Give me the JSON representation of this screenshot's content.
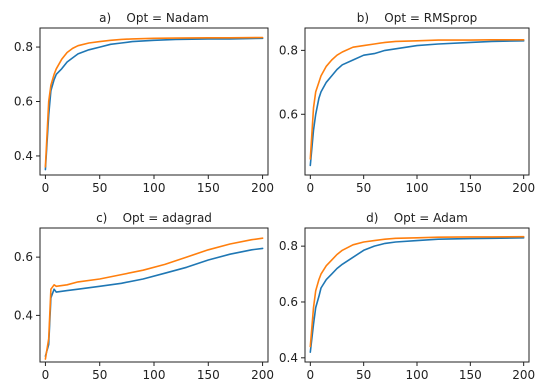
{
  "chart_data": [
    {
      "type": "line",
      "title": "a)    Opt = Nadam",
      "xlabel": "",
      "ylabel": "",
      "xlim": [
        -5,
        205
      ],
      "ylim": [
        0.33,
        0.87
      ],
      "xticks": [
        0,
        50,
        100,
        150,
        200
      ],
      "yticks": [
        0.4,
        0.6,
        0.8
      ],
      "ytick_labels": [
        "0.4",
        "0.6",
        "0.8"
      ],
      "grid": false,
      "series": [
        {
          "color": "#1f77b4",
          "x": [
            0,
            3,
            5,
            8,
            10,
            15,
            20,
            25,
            30,
            40,
            50,
            60,
            70,
            80,
            100,
            120,
            150,
            170,
            200
          ],
          "y": [
            0.35,
            0.55,
            0.64,
            0.68,
            0.7,
            0.72,
            0.745,
            0.76,
            0.775,
            0.79,
            0.8,
            0.81,
            0.815,
            0.82,
            0.825,
            0.828,
            0.83,
            0.83,
            0.832
          ]
        },
        {
          "color": "#ff7f0e",
          "x": [
            0,
            3,
            5,
            8,
            10,
            15,
            20,
            25,
            30,
            40,
            50,
            60,
            70,
            80,
            100,
            120,
            150,
            170,
            200
          ],
          "y": [
            0.36,
            0.6,
            0.66,
            0.7,
            0.72,
            0.755,
            0.78,
            0.795,
            0.805,
            0.815,
            0.82,
            0.825,
            0.828,
            0.83,
            0.832,
            0.833,
            0.834,
            0.834,
            0.835
          ]
        }
      ]
    },
    {
      "type": "line",
      "title": "b)    Opt = RMSprop",
      "xlabel": "",
      "ylabel": "",
      "xlim": [
        -5,
        205
      ],
      "ylim": [
        0.41,
        0.87
      ],
      "xticks": [
        0,
        50,
        100,
        150,
        200
      ],
      "yticks": [
        0.6,
        0.8
      ],
      "ytick_labels": [
        "0.6",
        "0.8"
      ],
      "grid": false,
      "series": [
        {
          "color": "#1f77b4",
          "x": [
            0,
            3,
            5,
            8,
            10,
            15,
            20,
            25,
            30,
            40,
            50,
            60,
            70,
            80,
            100,
            120,
            150,
            170,
            200
          ],
          "y": [
            0.44,
            0.55,
            0.6,
            0.65,
            0.67,
            0.7,
            0.72,
            0.74,
            0.755,
            0.77,
            0.785,
            0.79,
            0.8,
            0.805,
            0.815,
            0.82,
            0.825,
            0.828,
            0.83
          ]
        },
        {
          "color": "#ff7f0e",
          "x": [
            0,
            3,
            5,
            8,
            10,
            15,
            20,
            25,
            30,
            40,
            50,
            60,
            70,
            80,
            100,
            120,
            150,
            170,
            200
          ],
          "y": [
            0.46,
            0.62,
            0.67,
            0.7,
            0.72,
            0.75,
            0.77,
            0.785,
            0.795,
            0.81,
            0.815,
            0.82,
            0.825,
            0.828,
            0.83,
            0.832,
            0.832,
            0.833,
            0.833
          ]
        }
      ]
    },
    {
      "type": "line",
      "title": "c)    Opt = adagrad",
      "xlabel": "",
      "ylabel": "",
      "xlim": [
        -5,
        205
      ],
      "ylim": [
        0.24,
        0.7
      ],
      "xticks": [
        0,
        50,
        100,
        150,
        200
      ],
      "yticks": [
        0.4,
        0.6
      ],
      "ytick_labels": [
        "0.4",
        "0.6"
      ],
      "grid": false,
      "series": [
        {
          "color": "#1f77b4",
          "x": [
            0,
            3,
            5,
            8,
            10,
            20,
            30,
            50,
            70,
            90,
            110,
            130,
            150,
            170,
            190,
            200
          ],
          "y": [
            0.26,
            0.3,
            0.46,
            0.49,
            0.48,
            0.485,
            0.49,
            0.5,
            0.51,
            0.525,
            0.545,
            0.565,
            0.59,
            0.61,
            0.625,
            0.63
          ]
        },
        {
          "color": "#ff7f0e",
          "x": [
            0,
            3,
            5,
            8,
            10,
            20,
            30,
            50,
            70,
            90,
            110,
            130,
            150,
            170,
            190,
            200
          ],
          "y": [
            0.25,
            0.32,
            0.49,
            0.505,
            0.5,
            0.505,
            0.515,
            0.525,
            0.54,
            0.555,
            0.575,
            0.6,
            0.625,
            0.645,
            0.66,
            0.665
          ]
        }
      ]
    },
    {
      "type": "line",
      "title": "d)    Opt = Adam",
      "xlabel": "",
      "ylabel": "",
      "xlim": [
        -5,
        205
      ],
      "ylim": [
        0.385,
        0.865
      ],
      "xticks": [
        0,
        50,
        100,
        150,
        200
      ],
      "yticks": [
        0.4,
        0.6,
        0.8
      ],
      "ytick_labels": [
        "0.4",
        "0.6",
        "0.8"
      ],
      "grid": false,
      "series": [
        {
          "color": "#1f77b4",
          "x": [
            0,
            3,
            5,
            8,
            10,
            15,
            20,
            25,
            30,
            40,
            50,
            60,
            70,
            80,
            100,
            120,
            150,
            170,
            200
          ],
          "y": [
            0.42,
            0.52,
            0.58,
            0.62,
            0.65,
            0.68,
            0.7,
            0.72,
            0.735,
            0.76,
            0.785,
            0.8,
            0.81,
            0.815,
            0.82,
            0.825,
            0.827,
            0.828,
            0.83
          ]
        },
        {
          "color": "#ff7f0e",
          "x": [
            0,
            3,
            5,
            8,
            10,
            15,
            20,
            25,
            30,
            40,
            50,
            60,
            70,
            80,
            100,
            120,
            150,
            170,
            200
          ],
          "y": [
            0.44,
            0.58,
            0.64,
            0.68,
            0.7,
            0.73,
            0.75,
            0.77,
            0.785,
            0.805,
            0.815,
            0.82,
            0.825,
            0.828,
            0.83,
            0.832,
            0.833,
            0.833,
            0.834
          ]
        }
      ]
    }
  ]
}
